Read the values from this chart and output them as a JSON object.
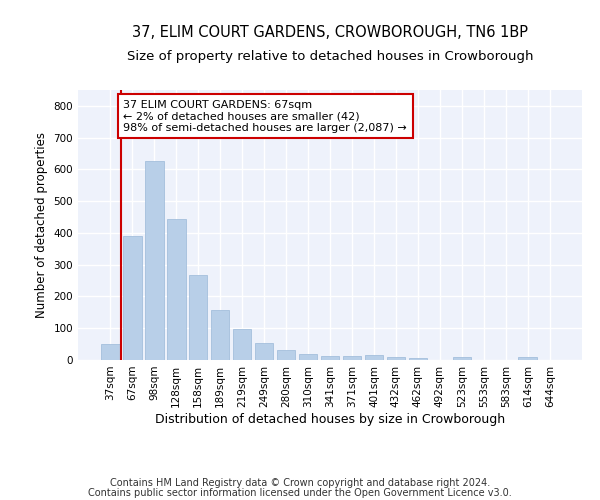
{
  "title_line1": "37, ELIM COURT GARDENS, CROWBOROUGH, TN6 1BP",
  "title_line2": "Size of property relative to detached houses in Crowborough",
  "xlabel": "Distribution of detached houses by size in Crowborough",
  "ylabel": "Number of detached properties",
  "categories": [
    "37sqm",
    "67sqm",
    "98sqm",
    "128sqm",
    "158sqm",
    "189sqm",
    "219sqm",
    "249sqm",
    "280sqm",
    "310sqm",
    "341sqm",
    "371sqm",
    "401sqm",
    "432sqm",
    "462sqm",
    "492sqm",
    "523sqm",
    "553sqm",
    "583sqm",
    "614sqm",
    "644sqm"
  ],
  "values": [
    50,
    390,
    625,
    443,
    267,
    157,
    98,
    55,
    30,
    20,
    12,
    13,
    15,
    8,
    5,
    0,
    8,
    0,
    0,
    8,
    0
  ],
  "bar_color": "#b8cfe8",
  "bar_edgecolor": "#9ab8d8",
  "vline_color": "#cc0000",
  "annotation_text": "37 ELIM COURT GARDENS: 67sqm\n← 2% of detached houses are smaller (42)\n98% of semi-detached houses are larger (2,087) →",
  "annotation_box_facecolor": "#ffffff",
  "annotation_box_edgecolor": "#cc0000",
  "ylim": [
    0,
    850
  ],
  "yticks": [
    0,
    100,
    200,
    300,
    400,
    500,
    600,
    700,
    800
  ],
  "bg_color": "#eef2fb",
  "grid_color": "#ffffff",
  "footer_line1": "Contains HM Land Registry data © Crown copyright and database right 2024.",
  "footer_line2": "Contains public sector information licensed under the Open Government Licence v3.0.",
  "title_fontsize": 10.5,
  "subtitle_fontsize": 9.5,
  "axis_label_fontsize": 8.5,
  "tick_fontsize": 7.5,
  "annotation_fontsize": 8,
  "footer_fontsize": 7
}
